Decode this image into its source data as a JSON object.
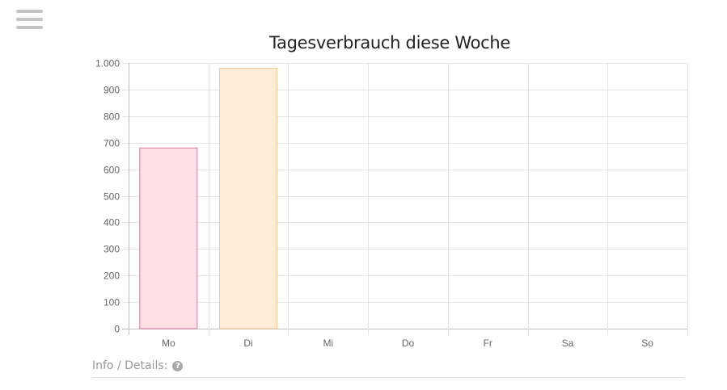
{
  "chart_data": {
    "type": "bar",
    "title": "Tagesverbrauch diese Woche",
    "categories": [
      "Mo",
      "Di",
      "Mi",
      "Do",
      "Fr",
      "Sa",
      "So"
    ],
    "values": [
      680,
      980,
      0,
      0,
      0,
      0,
      0
    ],
    "ylim": [
      0,
      1000
    ],
    "yticks": [
      0,
      100,
      200,
      300,
      400,
      500,
      600,
      700,
      800,
      900,
      1000
    ],
    "ytick_labels": [
      "0",
      "100",
      "200",
      "300",
      "400",
      "500",
      "600",
      "700",
      "800",
      "900",
      "1.000"
    ],
    "grid": true,
    "bar_fill_colors": [
      "#ffdfe6",
      "#ffecd8",
      "#e6f4f4",
      "#dfeefb",
      "#ebe0ff",
      "#f2f2f3",
      "#ffdfe6"
    ],
    "bar_border_colors": [
      "#d97aa0",
      "#f4c790",
      "#7cc9c9",
      "#7ab5e8",
      "#a98ae6",
      "#c6c7ca",
      "#d97aa0"
    ]
  },
  "info": {
    "label": "Info / Details:",
    "icon": "question-circle-icon",
    "icon_glyph": "?"
  }
}
